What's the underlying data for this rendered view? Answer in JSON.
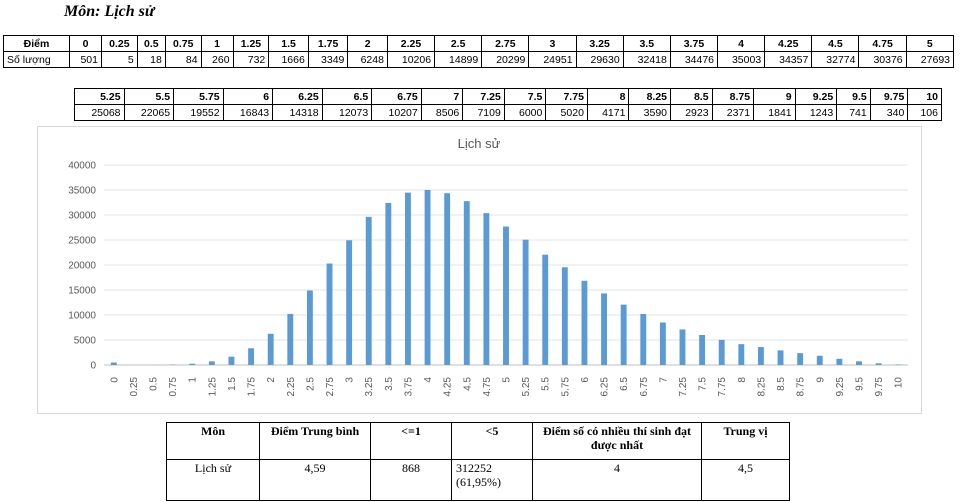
{
  "subject_title": "Môn: Lịch sử",
  "table1": {
    "row_labels": {
      "score": "Điểm",
      "count": "Số lượng"
    },
    "scores": [
      "0",
      "0.25",
      "0.5",
      "0.75",
      "1",
      "1.25",
      "1.5",
      "1.75",
      "2",
      "2.25",
      "2.5",
      "2.75",
      "3",
      "3.25",
      "3.5",
      "3.75",
      "4",
      "4.25",
      "4.5",
      "4.75",
      "5"
    ],
    "counts": [
      "501",
      "5",
      "18",
      "84",
      "260",
      "732",
      "1666",
      "3349",
      "6248",
      "10206",
      "14899",
      "20299",
      "24951",
      "29630",
      "32418",
      "34476",
      "35003",
      "34357",
      "32774",
      "30376",
      "27693"
    ]
  },
  "table2": {
    "scores": [
      "5.25",
      "5.5",
      "5.75",
      "6",
      "6.25",
      "6.5",
      "6.75",
      "7",
      "7.25",
      "7.5",
      "7.75",
      "8",
      "8.25",
      "8.5",
      "8.75",
      "9",
      "9.25",
      "9.5",
      "9.75",
      "10"
    ],
    "counts": [
      "25068",
      "22065",
      "19552",
      "16843",
      "14318",
      "12073",
      "10207",
      "8506",
      "7109",
      "6000",
      "5020",
      "4171",
      "3590",
      "2923",
      "2371",
      "1841",
      "1243",
      "741",
      "340",
      "106"
    ]
  },
  "chart_data": {
    "type": "bar",
    "title": "Lịch sử",
    "xlabel": "",
    "ylabel": "",
    "ylim": [
      0,
      40000
    ],
    "yticks": [
      0,
      5000,
      10000,
      15000,
      20000,
      25000,
      30000,
      35000,
      40000
    ],
    "grid": true,
    "categories": [
      "0",
      "0.25",
      "0.5",
      "0.75",
      "1",
      "1.25",
      "1.5",
      "1.75",
      "2",
      "2.25",
      "2.5",
      "2.75",
      "3",
      "3.25",
      "3.5",
      "3.75",
      "4",
      "4.25",
      "4.5",
      "4.75",
      "5",
      "5.25",
      "5.5",
      "5.75",
      "6",
      "6.25",
      "6.5",
      "6.75",
      "7",
      "7.25",
      "7.5",
      "7.75",
      "8",
      "8.25",
      "8.5",
      "8.75",
      "9",
      "9.25",
      "9.5",
      "9.75",
      "10"
    ],
    "values": [
      501,
      5,
      18,
      84,
      260,
      732,
      1666,
      3349,
      6248,
      10206,
      14899,
      20299,
      24951,
      29630,
      32418,
      34476,
      35003,
      34357,
      32774,
      30376,
      27693,
      25068,
      22065,
      19552,
      16843,
      14318,
      12073,
      10207,
      8506,
      7109,
      6000,
      5020,
      4171,
      3590,
      2923,
      2371,
      1841,
      1243,
      741,
      340,
      106
    ],
    "bar_color": "#5b9bd5"
  },
  "summary": {
    "headers": [
      "Môn",
      "Điểm Trung bình",
      "<=1",
      "<5",
      "Điểm số có nhiều thí sinh đạt được nhất",
      "Trung vị"
    ],
    "values": [
      "Lịch sử",
      "4,59",
      "868",
      "312252 (61,95%)",
      "4",
      "4,5"
    ]
  }
}
